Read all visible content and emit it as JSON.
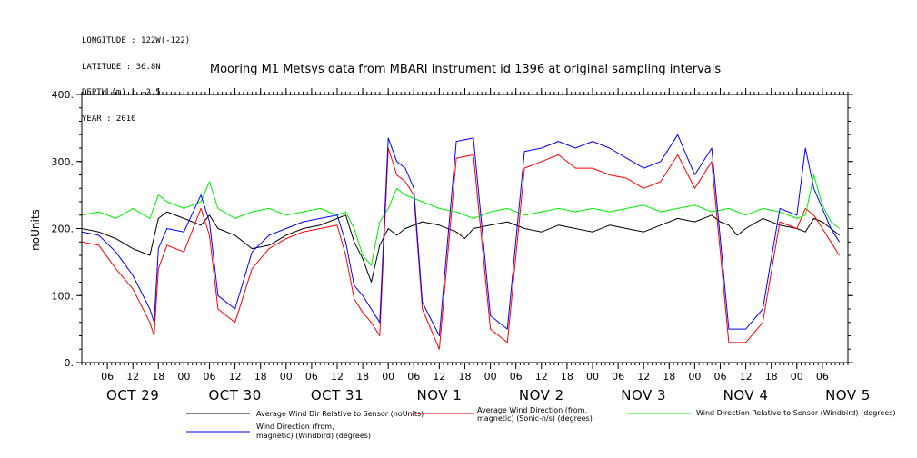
{
  "meta": {
    "longitude": "LONGITUDE : 122W(-122)",
    "latitude": "LATITUDE : 36.8N",
    "depth": "DEPTH (m) : -2.5",
    "year": "YEAR : 2010"
  },
  "chart_data": {
    "type": "line",
    "title": "Mooring M1 Metsys data from MBARI instrument id 1396 at original sampling intervals",
    "ylabel": "noUnits",
    "xlabel": "",
    "ylim": [
      0,
      400
    ],
    "yticks": [
      0,
      100,
      200,
      300,
      400
    ],
    "ytick_labels": [
      "0.",
      "100.",
      "200.",
      "300.",
      "400."
    ],
    "xlim_hours": [
      0,
      180
    ],
    "x_hour_labels": [
      "06",
      "12",
      "18",
      "00",
      "06",
      "12",
      "18",
      "00",
      "06",
      "12",
      "18",
      "00",
      "06",
      "12",
      "18",
      "00",
      "06",
      "12",
      "18",
      "00",
      "06",
      "12",
      "18",
      "00",
      "06",
      "12",
      "18",
      "00",
      "06"
    ],
    "day_labels": [
      "OCT 29",
      "OCT 30",
      "OCT 31",
      "NOV  1",
      "NOV  2",
      "NOV  3",
      "NOV  4",
      "NOV  5"
    ],
    "grid": false,
    "legend_position": "bottom",
    "series": [
      {
        "name": "Average Wind Dir Relative to Sensor (noUnits)",
        "color": "#000000",
        "x": [
          0,
          4,
          8,
          12,
          16,
          18,
          20,
          24,
          28,
          30,
          32,
          36,
          40,
          44,
          48,
          52,
          56,
          60,
          62,
          64,
          66,
          68,
          70,
          72,
          74,
          76,
          80,
          84,
          88,
          90,
          92,
          96,
          100,
          104,
          108,
          112,
          116,
          120,
          124,
          128,
          132,
          136,
          140,
          144,
          148,
          150,
          152,
          154,
          156,
          160,
          164,
          168,
          170,
          172,
          174,
          176,
          178
        ],
        "values": [
          200,
          195,
          185,
          170,
          160,
          215,
          225,
          215,
          205,
          220,
          200,
          190,
          170,
          175,
          190,
          200,
          205,
          215,
          220,
          180,
          155,
          120,
          175,
          200,
          190,
          200,
          210,
          205,
          195,
          185,
          200,
          205,
          210,
          200,
          195,
          205,
          200,
          195,
          205,
          200,
          195,
          205,
          215,
          210,
          220,
          210,
          205,
          190,
          200,
          215,
          205,
          200,
          195,
          215,
          210,
          200,
          190
        ]
      },
      {
        "name": "Average Wind Direction (from, magnetic) (Sonic-n/s) (degrees)",
        "color": "#ff0000",
        "x": [
          0,
          4,
          8,
          12,
          16,
          17,
          18,
          20,
          24,
          28,
          30,
          32,
          36,
          40,
          44,
          48,
          52,
          56,
          60,
          62,
          64,
          66,
          68,
          70,
          72,
          74,
          76,
          78,
          80,
          84,
          88,
          92,
          96,
          100,
          104,
          108,
          112,
          116,
          120,
          124,
          128,
          132,
          136,
          140,
          144,
          148,
          152,
          156,
          160,
          164,
          168,
          170,
          172,
          174,
          176,
          178
        ],
        "values": [
          180,
          175,
          140,
          110,
          60,
          40,
          140,
          175,
          165,
          230,
          190,
          80,
          60,
          140,
          170,
          185,
          195,
          200,
          205,
          160,
          95,
          75,
          60,
          40,
          320,
          280,
          270,
          250,
          80,
          20,
          305,
          310,
          50,
          30,
          290,
          300,
          310,
          290,
          290,
          280,
          275,
          260,
          270,
          310,
          260,
          300,
          30,
          30,
          60,
          210,
          200,
          230,
          220,
          200,
          180,
          160
        ]
      },
      {
        "name": "Wind Direction Relative to Sensor (Windbird) (degrees)",
        "color": "#00ee00",
        "x": [
          0,
          4,
          8,
          12,
          16,
          18,
          20,
          24,
          28,
          30,
          32,
          36,
          40,
          44,
          48,
          52,
          56,
          60,
          62,
          64,
          66,
          68,
          70,
          72,
          74,
          76,
          80,
          84,
          88,
          92,
          96,
          100,
          104,
          108,
          112,
          116,
          120,
          124,
          128,
          132,
          136,
          140,
          144,
          148,
          152,
          156,
          160,
          164,
          168,
          170,
          172,
          174,
          176,
          178
        ],
        "values": [
          220,
          225,
          215,
          230,
          215,
          250,
          240,
          230,
          240,
          270,
          230,
          215,
          225,
          230,
          220,
          225,
          230,
          220,
          225,
          200,
          160,
          145,
          210,
          230,
          260,
          250,
          240,
          230,
          225,
          215,
          225,
          230,
          220,
          225,
          230,
          225,
          230,
          225,
          230,
          235,
          225,
          230,
          235,
          225,
          230,
          220,
          230,
          225,
          215,
          220,
          280,
          235,
          210,
          200
        ]
      },
      {
        "name": "Wind Direction (from, magnetic) (Windbird) (degrees)",
        "color": "#0000ff",
        "x": [
          0,
          4,
          8,
          12,
          16,
          17,
          18,
          20,
          24,
          28,
          30,
          32,
          36,
          40,
          44,
          48,
          52,
          56,
          60,
          62,
          64,
          66,
          68,
          70,
          72,
          74,
          76,
          78,
          80,
          84,
          88,
          92,
          96,
          100,
          104,
          108,
          112,
          116,
          120,
          124,
          128,
          132,
          136,
          140,
          144,
          148,
          152,
          156,
          160,
          164,
          168,
          170,
          172,
          174,
          176,
          178
        ],
        "values": [
          195,
          190,
          165,
          130,
          80,
          60,
          170,
          200,
          195,
          250,
          210,
          100,
          80,
          165,
          190,
          200,
          210,
          215,
          220,
          180,
          115,
          100,
          80,
          60,
          335,
          300,
          290,
          260,
          90,
          40,
          330,
          335,
          70,
          50,
          315,
          320,
          330,
          320,
          330,
          320,
          305,
          290,
          300,
          340,
          280,
          320,
          50,
          50,
          80,
          230,
          220,
          320,
          260,
          230,
          200,
          180
        ]
      }
    ]
  },
  "legend": {
    "black_label": "Average Wind Dir Relative to Sensor (noUnits)",
    "red_label_1": "Average Wind Direction (from,",
    "red_label_2": "magnetic) (Sonic-n/s) (degrees)",
    "green_label": "Wind Direction Relative to Sensor (Windbird) (degrees)",
    "blue_label_1": "Wind Direction (from,",
    "blue_label_2": "magnetic) (Windbird) (degrees)"
  }
}
